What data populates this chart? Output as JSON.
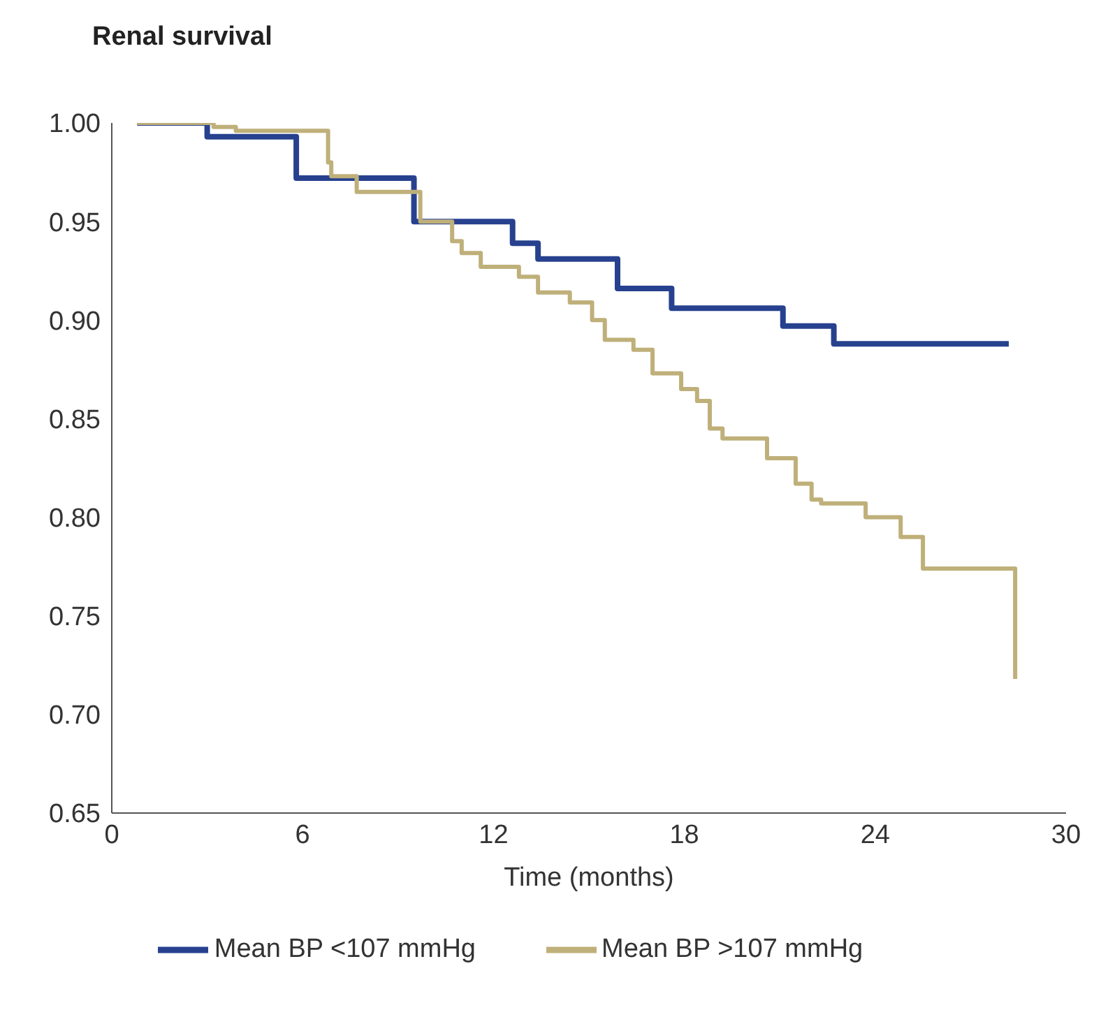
{
  "chart_data": {
    "type": "step",
    "title": "Renal survival",
    "xlabel": "Time (months)",
    "xlim": [
      0,
      30
    ],
    "xticks": [
      0,
      6,
      12,
      18,
      24,
      30
    ],
    "ylim": [
      0.65,
      1.0
    ],
    "yticks": [
      {
        "value": 0.65,
        "label": "0.65"
      },
      {
        "value": 0.7,
        "label": "0.70"
      },
      {
        "value": 0.75,
        "label": "0.75"
      },
      {
        "value": 0.8,
        "label": "0.80"
      },
      {
        "value": 0.85,
        "label": "0.85"
      },
      {
        "value": 0.9,
        "label": "0.90"
      },
      {
        "value": 0.95,
        "label": "0.95"
      },
      {
        "value": 1.0,
        "label": "1.00"
      }
    ],
    "grid": false,
    "legend": "bottom",
    "marker": "none",
    "line_style": "solid",
    "series": [
      {
        "name": "Mean BP <107 mmHg",
        "color": "#27418f",
        "x": [
          0.8,
          3.0,
          5.8,
          9.5,
          12.6,
          13.4,
          15.9,
          17.6,
          21.1,
          22.7,
          28.2
        ],
        "values": [
          1.0,
          0.993,
          0.972,
          0.95,
          0.939,
          0.931,
          0.916,
          0.906,
          0.897,
          0.888,
          0.888
        ]
      },
      {
        "name": "Mean BP >107 mmHg",
        "color": "#bfb07a",
        "x": [
          0.8,
          3.2,
          3.9,
          5.6,
          6.8,
          6.9,
          7.7,
          9.3,
          9.7,
          10.7,
          11.0,
          11.6,
          12.8,
          13.4,
          14.4,
          15.1,
          15.5,
          16.4,
          17.0,
          17.9,
          18.4,
          18.8,
          19.2,
          20.6,
          21.5,
          22.0,
          22.3,
          23.7,
          24.8,
          25.5,
          28.4
        ],
        "values": [
          1.0,
          0.998,
          0.996,
          0.996,
          0.98,
          0.973,
          0.965,
          0.965,
          0.95,
          0.94,
          0.934,
          0.927,
          0.922,
          0.914,
          0.909,
          0.9,
          0.89,
          0.885,
          0.873,
          0.865,
          0.859,
          0.845,
          0.84,
          0.83,
          0.817,
          0.809,
          0.807,
          0.8,
          0.79,
          0.774,
          0.718
        ]
      }
    ]
  }
}
